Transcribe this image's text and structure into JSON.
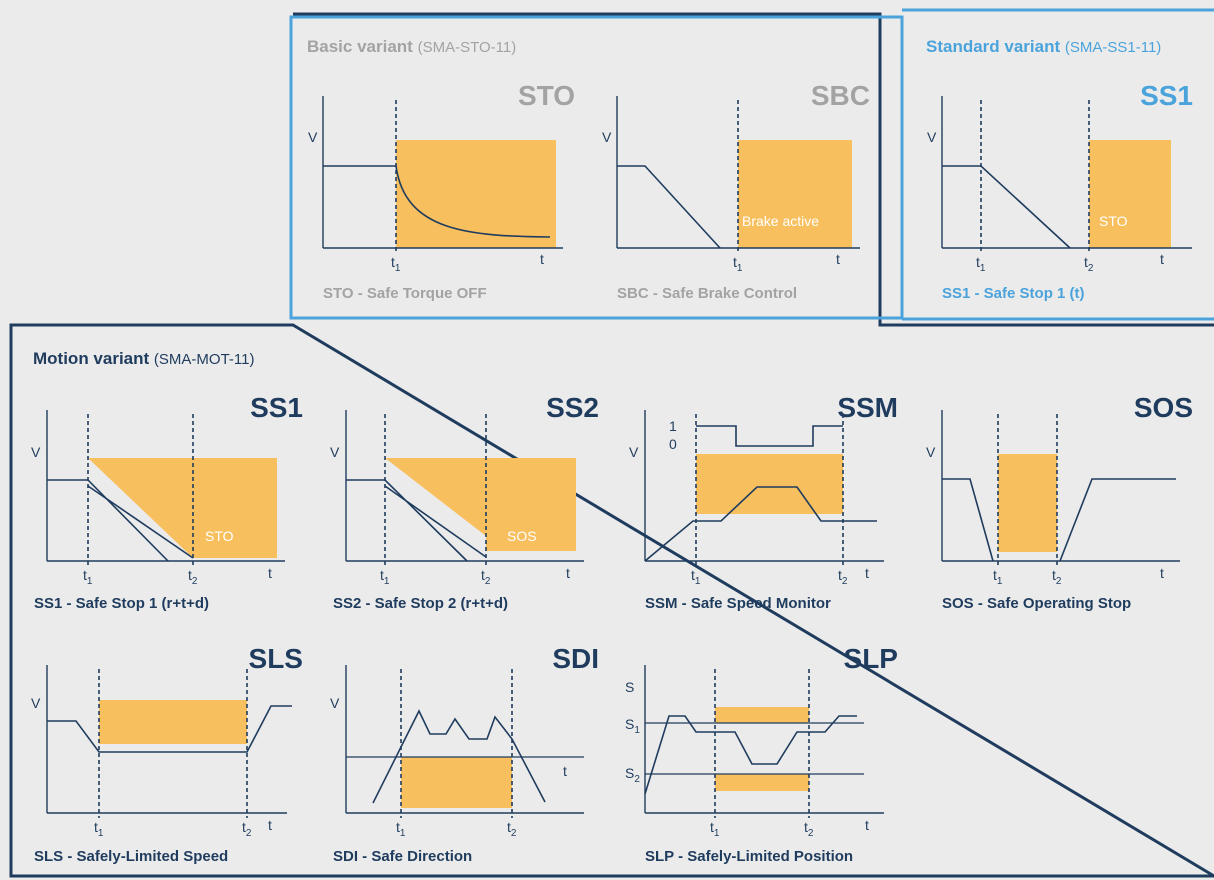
{
  "colors": {
    "basic_border": "#4ba3dc",
    "standard_border": "#4ba3dc",
    "motion_border": "#1f3c5e",
    "basic_text": "#a3a3a3",
    "standard_text": "#4ba3dc",
    "motion_text": "#1f3c5e",
    "fill": "#f8bf5e",
    "line": "#1f3c5e",
    "background": "#ebebeb"
  },
  "groups": {
    "basic": {
      "label": "Basic variant",
      "suffix": "(SMA-STO-11)"
    },
    "standard": {
      "label": "Standard variant",
      "suffix": "(SMA-SS1-11)"
    },
    "motion": {
      "label": "Motion variant",
      "suffix": "(SMA-MOT-11)"
    }
  },
  "panels": [
    {
      "id": "sto",
      "group": "basic",
      "name": "STO",
      "caption": "STO - Safe Torque OFF",
      "y_label": "V",
      "x_label": "t",
      "ticks": [
        {
          "t": "t",
          "s": "1"
        }
      ]
    },
    {
      "id": "sbc",
      "group": "basic",
      "name": "SBC",
      "caption": "SBC - Safe Brake Control",
      "y_label": "V",
      "x_label": "t",
      "ticks": [
        {
          "t": "t",
          "s": "1"
        }
      ],
      "inner_label": "Brake active"
    },
    {
      "id": "ss1std",
      "group": "standard",
      "name": "SS1",
      "caption": "SS1 - Safe Stop 1 (t)",
      "y_label": "V",
      "x_label": "t",
      "ticks": [
        {
          "t": "t",
          "s": "1"
        },
        {
          "t": "t",
          "s": "2"
        }
      ],
      "inner_label": "STO"
    },
    {
      "id": "ss1",
      "group": "motion",
      "name": "SS1",
      "caption": "SS1 - Safe Stop 1 (r+t+d)",
      "y_label": "V",
      "x_label": "t",
      "ticks": [
        {
          "t": "t",
          "s": "1"
        },
        {
          "t": "t",
          "s": "2"
        }
      ],
      "inner_label": "STO"
    },
    {
      "id": "ss2",
      "group": "motion",
      "name": "SS2",
      "caption": "SS2 - Safe Stop 2 (r+t+d)",
      "y_label": "V",
      "x_label": "t",
      "ticks": [
        {
          "t": "t",
          "s": "1"
        },
        {
          "t": "t",
          "s": "2"
        }
      ],
      "inner_label": "SOS"
    },
    {
      "id": "ssm",
      "group": "motion",
      "name": "SSM",
      "caption": "SSM - Safe Speed Monitor",
      "y_label": "V",
      "x_label": "t",
      "ticks": [
        {
          "t": "t",
          "s": "1"
        },
        {
          "t": "t",
          "s": "2"
        }
      ],
      "levels": [
        "1",
        "0"
      ]
    },
    {
      "id": "sos",
      "group": "motion",
      "name": "SOS",
      "caption": "SOS - Safe Operating Stop",
      "y_label": "V",
      "x_label": "t",
      "ticks": [
        {
          "t": "t",
          "s": "1"
        },
        {
          "t": "t",
          "s": "2"
        }
      ]
    },
    {
      "id": "sls",
      "group": "motion",
      "name": "SLS",
      "caption": "SLS - Safely-Limited Speed",
      "y_label": "V",
      "x_label": "t",
      "ticks": [
        {
          "t": "t",
          "s": "1"
        },
        {
          "t": "t",
          "s": "2"
        }
      ]
    },
    {
      "id": "sdi",
      "group": "motion",
      "name": "SDI",
      "caption": "SDI - Safe Direction",
      "y_label": "V",
      "x_label": "t",
      "ticks": [
        {
          "t": "t",
          "s": "1"
        },
        {
          "t": "t",
          "s": "2"
        }
      ]
    },
    {
      "id": "slp",
      "group": "motion",
      "name": "SLP",
      "caption": "SLP - Safely-Limited Position",
      "y_label": "S",
      "x_label": "t",
      "ticks": [
        {
          "t": "t",
          "s": "1"
        },
        {
          "t": "t",
          "s": "2"
        }
      ],
      "limits": [
        {
          "t": "S",
          "s": "1"
        },
        {
          "t": "S",
          "s": "2"
        }
      ]
    }
  ]
}
